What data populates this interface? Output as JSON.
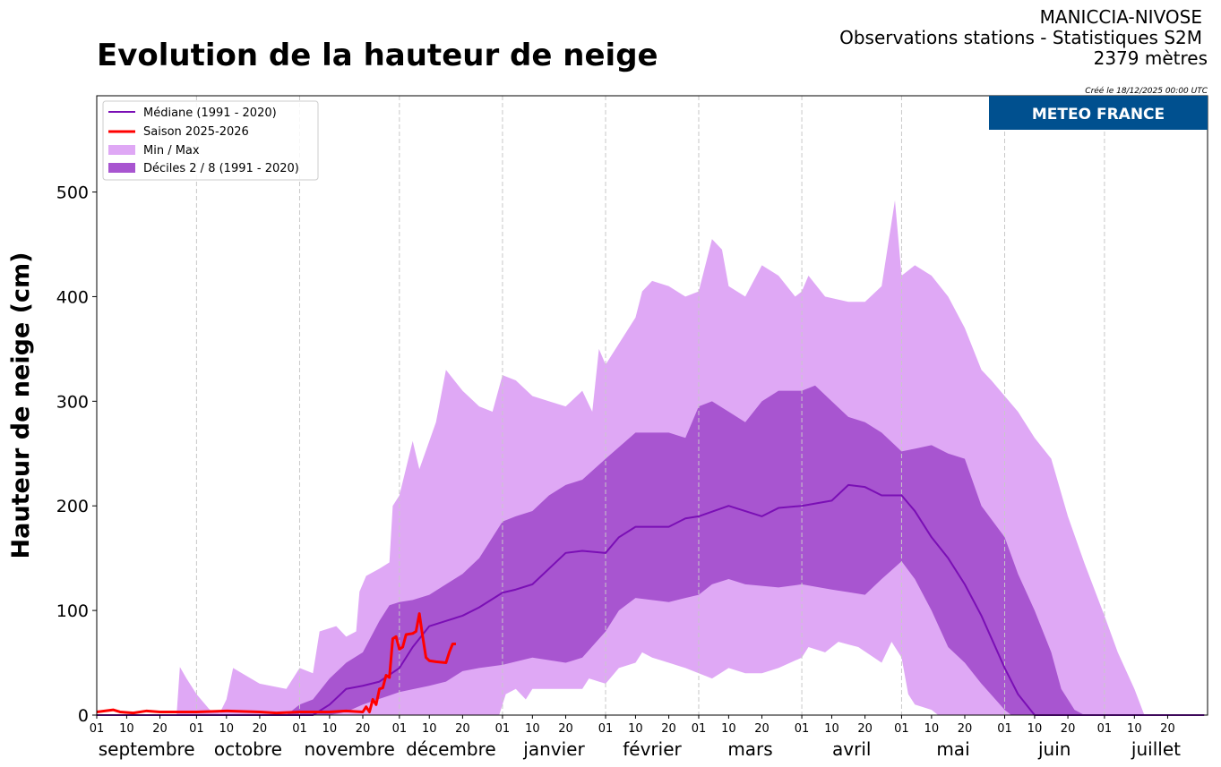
{
  "header": {
    "title": "Evolution de la hauteur de neige",
    "station": "MANICCIA-NIVOSE",
    "subtitle": "Observations stations - Statistiques S2M",
    "altitude": "2379 mètres",
    "created": "Créé le 18/12/2025 00:00 UTC",
    "logo_text": "METEO FRANCE",
    "logo_color": "#00508f"
  },
  "chart_data": {
    "type": "area",
    "title": "Evolution de la hauteur de neige",
    "ylabel": "Hauteur de neige (cm)",
    "xlabel": "",
    "xlim": [
      "2025-09-01",
      "2026-07-31"
    ],
    "ylim": [
      0,
      592
    ],
    "yticks": [
      0,
      100,
      200,
      300,
      400,
      500
    ],
    "xtick_days": [
      "01",
      "10",
      "20"
    ],
    "months": [
      "septembre",
      "octobre",
      "novembre",
      "décembre",
      "janvier",
      "février",
      "mars",
      "avril",
      "mai",
      "juin",
      "juillet"
    ],
    "month_gridlines": true,
    "legend_position": "top-left",
    "legend": [
      {
        "label": "Médiane (1991 - 2020)",
        "kind": "line",
        "color": "#7a0fb5"
      },
      {
        "label": "Saison 2025-2026",
        "kind": "line",
        "color": "#ff0000"
      },
      {
        "label": "Min / Max",
        "kind": "patch",
        "color": "#dfa8f5"
      },
      {
        "label": "Déciles 2 / 8  (1991 - 2020)",
        "kind": "patch",
        "color": "#a855d0"
      }
    ],
    "series": {
      "max": [
        [
          "2025-09-01",
          0
        ],
        [
          "2025-09-25",
          0
        ],
        [
          "2025-09-26",
          46
        ],
        [
          "2025-09-28",
          35
        ],
        [
          "2025-10-01",
          20
        ],
        [
          "2025-10-05",
          5
        ],
        [
          "2025-10-08",
          2
        ],
        [
          "2025-10-10",
          15
        ],
        [
          "2025-10-12",
          45
        ],
        [
          "2025-10-20",
          30
        ],
        [
          "2025-10-28",
          25
        ],
        [
          "2025-11-01",
          45
        ],
        [
          "2025-11-05",
          40
        ],
        [
          "2025-11-07",
          80
        ],
        [
          "2025-11-12",
          85
        ],
        [
          "2025-11-15",
          75
        ],
        [
          "2025-11-18",
          80
        ],
        [
          "2025-11-19",
          118
        ],
        [
          "2025-11-21",
          133
        ],
        [
          "2025-11-25",
          140
        ],
        [
          "2025-11-28",
          146
        ],
        [
          "2025-11-29",
          200
        ],
        [
          "2025-12-01",
          210
        ],
        [
          "2025-12-05",
          262
        ],
        [
          "2025-12-07",
          235
        ],
        [
          "2025-12-12",
          280
        ],
        [
          "2025-12-15",
          330
        ],
        [
          "2025-12-20",
          310
        ],
        [
          "2025-12-25",
          295
        ],
        [
          "2025-12-29",
          290
        ],
        [
          "2026-01-01",
          325
        ],
        [
          "2026-01-05",
          320
        ],
        [
          "2026-01-10",
          305
        ],
        [
          "2026-01-15",
          300
        ],
        [
          "2026-01-20",
          295
        ],
        [
          "2026-01-25",
          310
        ],
        [
          "2026-01-28",
          290
        ],
        [
          "2026-01-30",
          350
        ],
        [
          "2026-02-01",
          335
        ],
        [
          "2026-02-05",
          355
        ],
        [
          "2026-02-10",
          380
        ],
        [
          "2026-02-12",
          405
        ],
        [
          "2026-02-15",
          415
        ],
        [
          "2026-02-20",
          410
        ],
        [
          "2026-02-25",
          400
        ],
        [
          "2026-03-01",
          405
        ],
        [
          "2026-03-05",
          455
        ],
        [
          "2026-03-08",
          445
        ],
        [
          "2026-03-10",
          410
        ],
        [
          "2026-03-15",
          400
        ],
        [
          "2026-03-20",
          430
        ],
        [
          "2026-03-25",
          420
        ],
        [
          "2026-03-30",
          400
        ],
        [
          "2026-04-01",
          405
        ],
        [
          "2026-04-03",
          420
        ],
        [
          "2026-04-08",
          400
        ],
        [
          "2026-04-15",
          395
        ],
        [
          "2026-04-20",
          395
        ],
        [
          "2026-04-25",
          410
        ],
        [
          "2026-04-29",
          492
        ],
        [
          "2026-05-01",
          420
        ],
        [
          "2026-05-05",
          430
        ],
        [
          "2026-05-10",
          420
        ],
        [
          "2026-05-15",
          400
        ],
        [
          "2026-05-20",
          370
        ],
        [
          "2026-05-25",
          330
        ],
        [
          "2026-05-28",
          320
        ],
        [
          "2026-06-01",
          305
        ],
        [
          "2026-06-05",
          290
        ],
        [
          "2026-06-10",
          265
        ],
        [
          "2026-06-15",
          245
        ],
        [
          "2026-06-20",
          190
        ],
        [
          "2026-06-25",
          145
        ],
        [
          "2026-07-01",
          95
        ],
        [
          "2026-07-05",
          60
        ],
        [
          "2026-07-10",
          25
        ],
        [
          "2026-07-13",
          0
        ],
        [
          "2026-07-31",
          0
        ]
      ],
      "min": [
        [
          "2025-09-01",
          0
        ],
        [
          "2025-12-31",
          0
        ],
        [
          "2026-01-02",
          20
        ],
        [
          "2026-01-05",
          25
        ],
        [
          "2026-01-08",
          15
        ],
        [
          "2026-01-10",
          25
        ],
        [
          "2026-01-25",
          25
        ],
        [
          "2026-01-27",
          35
        ],
        [
          "2026-02-01",
          30
        ],
        [
          "2026-02-05",
          45
        ],
        [
          "2026-02-10",
          50
        ],
        [
          "2026-02-12",
          60
        ],
        [
          "2026-02-15",
          55
        ],
        [
          "2026-02-20",
          50
        ],
        [
          "2026-02-25",
          45
        ],
        [
          "2026-03-01",
          40
        ],
        [
          "2026-03-05",
          35
        ],
        [
          "2026-03-10",
          45
        ],
        [
          "2026-03-15",
          40
        ],
        [
          "2026-03-20",
          40
        ],
        [
          "2026-03-25",
          45
        ],
        [
          "2026-04-01",
          55
        ],
        [
          "2026-04-03",
          65
        ],
        [
          "2026-04-08",
          60
        ],
        [
          "2026-04-12",
          70
        ],
        [
          "2026-04-18",
          65
        ],
        [
          "2026-04-25",
          50
        ],
        [
          "2026-04-28",
          70
        ],
        [
          "2026-05-01",
          55
        ],
        [
          "2026-05-03",
          20
        ],
        [
          "2026-05-05",
          10
        ],
        [
          "2026-05-10",
          5
        ],
        [
          "2026-05-12",
          0
        ],
        [
          "2026-07-31",
          0
        ]
      ],
      "decile8": [
        [
          "2025-09-01",
          0
        ],
        [
          "2025-10-28",
          0
        ],
        [
          "2025-11-01",
          10
        ],
        [
          "2025-11-05",
          15
        ],
        [
          "2025-11-10",
          35
        ],
        [
          "2025-11-15",
          50
        ],
        [
          "2025-11-20",
          60
        ],
        [
          "2025-11-25",
          90
        ],
        [
          "2025-11-28",
          105
        ],
        [
          "2025-12-01",
          108
        ],
        [
          "2025-12-05",
          110
        ],
        [
          "2025-12-10",
          115
        ],
        [
          "2025-12-15",
          125
        ],
        [
          "2025-12-20",
          135
        ],
        [
          "2025-12-25",
          150
        ],
        [
          "2026-01-01",
          185
        ],
        [
          "2026-01-05",
          190
        ],
        [
          "2026-01-10",
          195
        ],
        [
          "2026-01-15",
          210
        ],
        [
          "2026-01-20",
          220
        ],
        [
          "2026-01-25",
          225
        ],
        [
          "2026-02-01",
          245
        ],
        [
          "2026-02-10",
          270
        ],
        [
          "2026-02-20",
          270
        ],
        [
          "2026-02-25",
          265
        ],
        [
          "2026-03-01",
          295
        ],
        [
          "2026-03-05",
          300
        ],
        [
          "2026-03-15",
          280
        ],
        [
          "2026-03-20",
          300
        ],
        [
          "2026-03-25",
          310
        ],
        [
          "2026-04-01",
          310
        ],
        [
          "2026-04-05",
          315
        ],
        [
          "2026-04-15",
          285
        ],
        [
          "2026-04-20",
          280
        ],
        [
          "2026-04-25",
          270
        ],
        [
          "2026-05-01",
          252
        ],
        [
          "2026-05-10",
          258
        ],
        [
          "2026-05-15",
          250
        ],
        [
          "2026-05-20",
          245
        ],
        [
          "2026-05-25",
          200
        ],
        [
          "2026-06-01",
          170
        ],
        [
          "2026-06-05",
          135
        ],
        [
          "2026-06-10",
          100
        ],
        [
          "2026-06-15",
          60
        ],
        [
          "2026-06-18",
          25
        ],
        [
          "2026-06-22",
          5
        ],
        [
          "2026-06-25",
          0
        ],
        [
          "2026-07-31",
          0
        ]
      ],
      "decile2": [
        [
          "2025-09-01",
          0
        ],
        [
          "2025-11-10",
          0
        ],
        [
          "2025-11-15",
          3
        ],
        [
          "2025-11-20",
          10
        ],
        [
          "2025-12-01",
          22
        ],
        [
          "2025-12-10",
          28
        ],
        [
          "2025-12-15",
          32
        ],
        [
          "2025-12-20",
          42
        ],
        [
          "2025-12-25",
          45
        ],
        [
          "2026-01-01",
          48
        ],
        [
          "2026-01-10",
          55
        ],
        [
          "2026-01-20",
          50
        ],
        [
          "2026-01-25",
          55
        ],
        [
          "2026-02-01",
          80
        ],
        [
          "2026-02-05",
          100
        ],
        [
          "2026-02-10",
          112
        ],
        [
          "2026-02-20",
          108
        ],
        [
          "2026-02-25",
          112
        ],
        [
          "2026-03-01",
          115
        ],
        [
          "2026-03-05",
          125
        ],
        [
          "2026-03-10",
          130
        ],
        [
          "2026-03-15",
          125
        ],
        [
          "2026-03-25",
          122
        ],
        [
          "2026-04-01",
          125
        ],
        [
          "2026-04-10",
          120
        ],
        [
          "2026-04-20",
          115
        ],
        [
          "2026-04-25",
          130
        ],
        [
          "2026-05-01",
          147
        ],
        [
          "2026-05-05",
          130
        ],
        [
          "2026-05-10",
          100
        ],
        [
          "2026-05-15",
          65
        ],
        [
          "2026-05-20",
          50
        ],
        [
          "2026-05-25",
          30
        ],
        [
          "2026-06-01",
          5
        ],
        [
          "2026-06-03",
          0
        ],
        [
          "2026-07-31",
          0
        ]
      ],
      "median": [
        [
          "2025-09-01",
          0
        ],
        [
          "2025-11-05",
          0
        ],
        [
          "2025-11-10",
          10
        ],
        [
          "2025-11-15",
          25
        ],
        [
          "2025-11-20",
          28
        ],
        [
          "2025-11-25",
          32
        ],
        [
          "2025-12-01",
          45
        ],
        [
          "2025-12-05",
          65
        ],
        [
          "2025-12-10",
          85
        ],
        [
          "2025-12-15",
          90
        ],
        [
          "2025-12-20",
          95
        ],
        [
          "2025-12-25",
          103
        ],
        [
          "2026-01-01",
          117
        ],
        [
          "2026-01-05",
          120
        ],
        [
          "2026-01-10",
          125
        ],
        [
          "2026-01-15",
          140
        ],
        [
          "2026-01-20",
          155
        ],
        [
          "2026-01-25",
          157
        ],
        [
          "2026-02-01",
          155
        ],
        [
          "2026-02-05",
          170
        ],
        [
          "2026-02-10",
          180
        ],
        [
          "2026-02-20",
          180
        ],
        [
          "2026-02-25",
          188
        ],
        [
          "2026-03-01",
          190
        ],
        [
          "2026-03-10",
          200
        ],
        [
          "2026-03-15",
          195
        ],
        [
          "2026-03-20",
          190
        ],
        [
          "2026-03-25",
          198
        ],
        [
          "2026-04-01",
          200
        ],
        [
          "2026-04-10",
          205
        ],
        [
          "2026-04-15",
          220
        ],
        [
          "2026-04-20",
          218
        ],
        [
          "2026-04-25",
          210
        ],
        [
          "2026-05-01",
          210
        ],
        [
          "2026-05-05",
          195
        ],
        [
          "2026-05-10",
          170
        ],
        [
          "2026-05-15",
          150
        ],
        [
          "2026-05-20",
          125
        ],
        [
          "2026-05-25",
          95
        ],
        [
          "2026-06-01",
          45
        ],
        [
          "2026-06-05",
          20
        ],
        [
          "2026-06-10",
          0
        ],
        [
          "2026-07-31",
          0
        ]
      ],
      "season": [
        [
          "2025-09-01",
          3
        ],
        [
          "2025-09-06",
          5
        ],
        [
          "2025-09-08",
          3
        ],
        [
          "2025-09-12",
          2
        ],
        [
          "2025-09-16",
          4
        ],
        [
          "2025-09-20",
          3
        ],
        [
          "2025-09-25",
          3
        ],
        [
          "2025-10-01",
          3
        ],
        [
          "2025-10-10",
          4
        ],
        [
          "2025-10-20",
          3
        ],
        [
          "2025-10-25",
          2
        ],
        [
          "2025-11-01",
          3
        ],
        [
          "2025-11-10",
          3
        ],
        [
          "2025-11-15",
          4
        ],
        [
          "2025-11-20",
          3
        ],
        [
          "2025-11-21",
          8
        ],
        [
          "2025-11-22",
          3
        ],
        [
          "2025-11-23",
          15
        ],
        [
          "2025-11-24",
          10
        ],
        [
          "2025-11-25",
          25
        ],
        [
          "2025-11-26",
          26
        ],
        [
          "2025-11-27",
          38
        ],
        [
          "2025-11-28",
          36
        ],
        [
          "2025-11-29",
          73
        ],
        [
          "2025-11-30",
          75
        ],
        [
          "2025-12-01",
          63
        ],
        [
          "2025-12-02",
          65
        ],
        [
          "2025-12-03",
          77
        ],
        [
          "2025-12-05",
          78
        ],
        [
          "2025-12-06",
          80
        ],
        [
          "2025-12-07",
          97
        ],
        [
          "2025-12-08",
          75
        ],
        [
          "2025-12-09",
          55
        ],
        [
          "2025-12-10",
          52
        ],
        [
          "2025-12-12",
          51
        ],
        [
          "2025-12-15",
          50
        ],
        [
          "2025-12-16",
          60
        ],
        [
          "2025-12-17",
          68
        ],
        [
          "2025-12-18",
          68
        ]
      ]
    }
  }
}
